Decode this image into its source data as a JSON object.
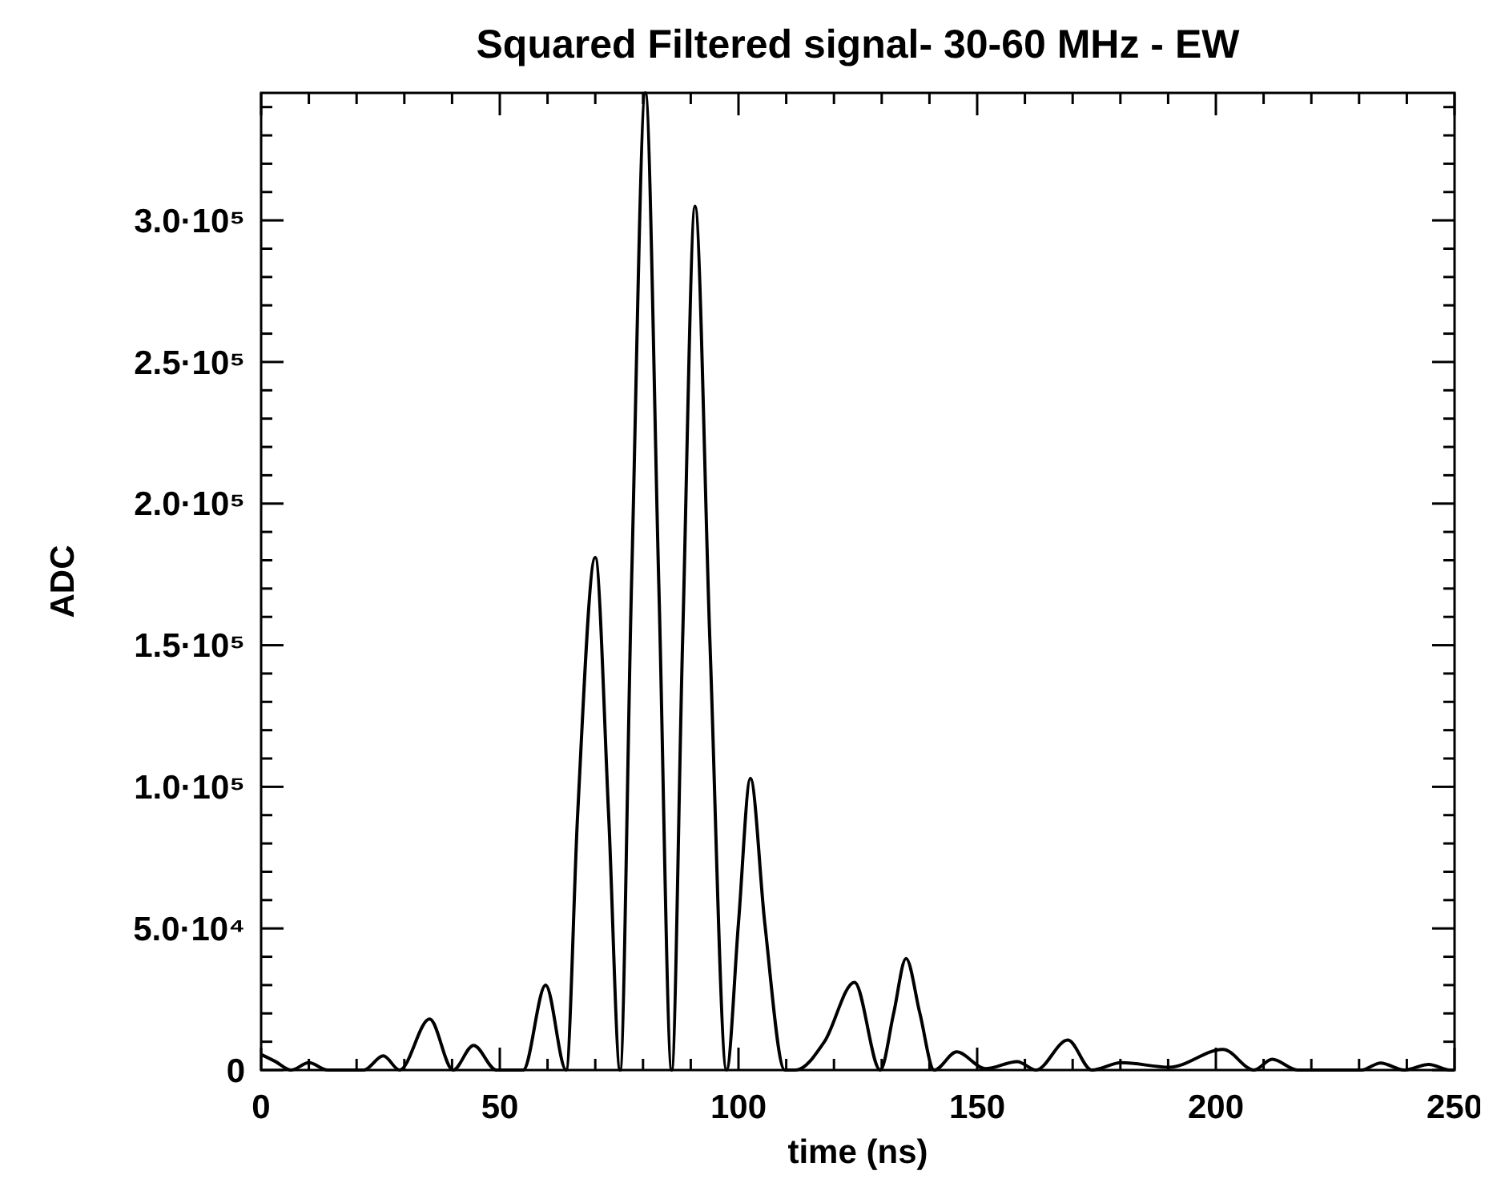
{
  "chart_data": {
    "type": "line",
    "title": "Squared Filtered signal- 30-60 MHz - EW",
    "xlabel": "time (ns)",
    "ylabel": "ADC",
    "series": [
      {
        "color": "#000000",
        "x": [
          0,
          3,
          6.3,
          10,
          14,
          21.5,
          25.6,
          29,
          35.3,
          40.2,
          44.5,
          49.3,
          54.9,
          59.6,
          63.9,
          66.3,
          70,
          72.8,
          75.2,
          77.6,
          80.5,
          83.3,
          86,
          88.3,
          90.9,
          94,
          97.5,
          100,
          102.5,
          105.5,
          109.7,
          112,
          118,
          124.3,
          129.7,
          132.5,
          135.1,
          138,
          141,
          145.7,
          151.7,
          158.4,
          162.3,
          169,
          174,
          180.2,
          190.3,
          201.5,
          208,
          211.8,
          217.1,
          230.5,
          234.5,
          239.5,
          244.6,
          249,
          250
        ],
        "values": [
          5500,
          3000,
          0,
          2600,
          0,
          0,
          5000,
          0,
          18000,
          0,
          8700,
          0,
          0,
          30000,
          0,
          90000,
          181000,
          90000,
          0,
          172000,
          345000,
          172000,
          0,
          152000,
          305000,
          152000,
          0,
          52000,
          103000,
          52000,
          0,
          0,
          10000,
          31000,
          0,
          20000,
          39400,
          20000,
          0,
          6400,
          500,
          3000,
          0,
          10600,
          0,
          2600,
          1000,
          7300,
          0,
          3800,
          0,
          0,
          2500,
          0,
          2000,
          0,
          0
        ]
      }
    ],
    "xlim": [
      0,
      250
    ],
    "ylim": [
      0,
      345000
    ],
    "xticks": [
      0,
      {
        "value": 10,
        "label": null
      },
      {
        "value": 20,
        "label": null
      },
      {
        "value": 30,
        "label": null
      },
      {
        "value": 40,
        "label": null
      },
      50,
      {
        "value": 60,
        "label": null
      },
      {
        "value": 70,
        "label": null
      },
      {
        "value": 80,
        "label": null
      },
      {
        "value": 90,
        "label": null
      },
      100,
      {
        "value": 110,
        "label": null
      },
      {
        "value": 120,
        "label": null
      },
      {
        "value": 130,
        "label": null
      },
      {
        "value": 140,
        "label": null
      },
      150,
      {
        "value": 160,
        "label": null
      },
      {
        "value": 170,
        "label": null
      },
      {
        "value": 180,
        "label": null
      },
      {
        "value": 190,
        "label": null
      },
      200,
      {
        "value": 210,
        "label": null
      },
      {
        "value": 220,
        "label": null
      },
      {
        "value": 230,
        "label": null
      },
      {
        "value": 240,
        "label": null
      },
      250
    ],
    "yticks": [
      0,
      {
        "value": 10000,
        "label": null
      },
      {
        "value": 20000,
        "label": null
      },
      {
        "value": 30000,
        "label": null
      },
      {
        "value": 40000,
        "label": null
      },
      {
        "value": 50000,
        "label": "5.0·10⁴"
      },
      {
        "value": 60000,
        "label": null
      },
      {
        "value": 70000,
        "label": null
      },
      {
        "value": 80000,
        "label": null
      },
      {
        "value": 90000,
        "label": null
      },
      {
        "value": 100000,
        "label": "1.0·10⁵"
      },
      {
        "value": 110000,
        "label": null
      },
      {
        "value": 120000,
        "label": null
      },
      {
        "value": 130000,
        "label": null
      },
      {
        "value": 140000,
        "label": null
      },
      {
        "value": 150000,
        "label": "1.5·10⁵"
      },
      {
        "value": 160000,
        "label": null
      },
      {
        "value": 170000,
        "label": null
      },
      {
        "value": 180000,
        "label": null
      },
      {
        "value": 190000,
        "label": null
      },
      {
        "value": 200000,
        "label": "2.0·10⁵"
      },
      {
        "value": 210000,
        "label": null
      },
      {
        "value": 220000,
        "label": null
      },
      {
        "value": 230000,
        "label": null
      },
      {
        "value": 240000,
        "label": null
      },
      {
        "value": 250000,
        "label": "2.5·10⁵"
      },
      {
        "value": 260000,
        "label": null
      },
      {
        "value": 270000,
        "label": null
      },
      {
        "value": 280000,
        "label": null
      },
      {
        "value": 290000,
        "label": null
      },
      {
        "value": 300000,
        "label": "3.0·10⁵"
      },
      {
        "value": 310000,
        "label": null
      },
      {
        "value": 320000,
        "label": null
      },
      {
        "value": 330000,
        "label": null
      },
      {
        "value": 340000,
        "label": null
      }
    ],
    "marker": "none",
    "line_style": "solid"
  }
}
